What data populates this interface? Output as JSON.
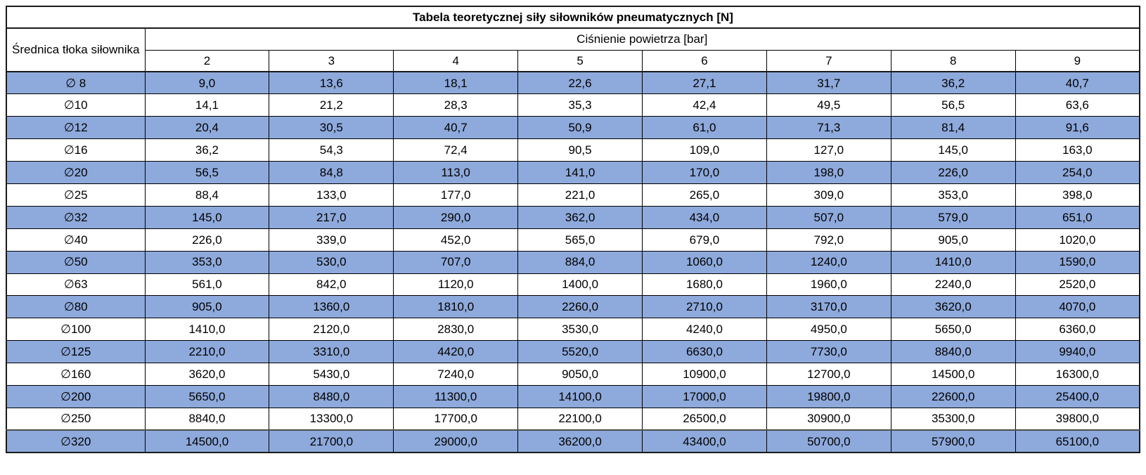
{
  "title": "Tabela teoretycznej siły siłowników pneumatycznych [N]",
  "headers": {
    "row_label": "Średnica tłoka siłownika",
    "column_group_label": "Ciśnienie powietrza [bar]"
  },
  "colors": {
    "row_highlight": "#8EA9DB",
    "border": "#000000",
    "background": "#FFFFFF",
    "text": "#000000"
  },
  "table": {
    "pressures": [
      "2",
      "3",
      "4",
      "5",
      "6",
      "7",
      "8",
      "9"
    ],
    "rows": [
      {
        "diameter": "∅ 8",
        "highlight": true,
        "values": [
          "9,0",
          "13,6",
          "18,1",
          "22,6",
          "27,1",
          "31,7",
          "36,2",
          "40,7"
        ]
      },
      {
        "diameter": "∅10",
        "highlight": false,
        "values": [
          "14,1",
          "21,2",
          "28,3",
          "35,3",
          "42,4",
          "49,5",
          "56,5",
          "63,6"
        ]
      },
      {
        "diameter": "∅12",
        "highlight": true,
        "values": [
          "20,4",
          "30,5",
          "40,7",
          "50,9",
          "61,0",
          "71,3",
          "81,4",
          "91,6"
        ]
      },
      {
        "diameter": "∅16",
        "highlight": false,
        "values": [
          "36,2",
          "54,3",
          "72,4",
          "90,5",
          "109,0",
          "127,0",
          "145,0",
          "163,0"
        ]
      },
      {
        "diameter": "∅20",
        "highlight": true,
        "values": [
          "56,5",
          "84,8",
          "113,0",
          "141,0",
          "170,0",
          "198,0",
          "226,0",
          "254,0"
        ]
      },
      {
        "diameter": "∅25",
        "highlight": false,
        "values": [
          "88,4",
          "133,0",
          "177,0",
          "221,0",
          "265,0",
          "309,0",
          "353,0",
          "398,0"
        ]
      },
      {
        "diameter": "∅32",
        "highlight": true,
        "values": [
          "145,0",
          "217,0",
          "290,0",
          "362,0",
          "434,0",
          "507,0",
          "579,0",
          "651,0"
        ]
      },
      {
        "diameter": "∅40",
        "highlight": false,
        "values": [
          "226,0",
          "339,0",
          "452,0",
          "565,0",
          "679,0",
          "792,0",
          "905,0",
          "1020,0"
        ]
      },
      {
        "diameter": "∅50",
        "highlight": true,
        "values": [
          "353,0",
          "530,0",
          "707,0",
          "884,0",
          "1060,0",
          "1240,0",
          "1410,0",
          "1590,0"
        ]
      },
      {
        "diameter": "∅63",
        "highlight": false,
        "values": [
          "561,0",
          "842,0",
          "1120,0",
          "1400,0",
          "1680,0",
          "1960,0",
          "2240,0",
          "2520,0"
        ]
      },
      {
        "diameter": "∅80",
        "highlight": true,
        "values": [
          "905,0",
          "1360,0",
          "1810,0",
          "2260,0",
          "2710,0",
          "3170,0",
          "3620,0",
          "4070,0"
        ]
      },
      {
        "diameter": "∅100",
        "highlight": false,
        "values": [
          "1410,0",
          "2120,0",
          "2830,0",
          "3530,0",
          "4240,0",
          "4950,0",
          "5650,0",
          "6360,0"
        ]
      },
      {
        "diameter": "∅125",
        "highlight": true,
        "values": [
          "2210,0",
          "3310,0",
          "4420,0",
          "5520,0",
          "6630,0",
          "7730,0",
          "8840,0",
          "9940,0"
        ]
      },
      {
        "diameter": "∅160",
        "highlight": false,
        "values": [
          "3620,0",
          "5430,0",
          "7240,0",
          "9050,0",
          "10900,0",
          "12700,0",
          "14500,0",
          "16300,0"
        ]
      },
      {
        "diameter": "∅200",
        "highlight": true,
        "values": [
          "5650,0",
          "8480,0",
          "11300,0",
          "14100,0",
          "17000,0",
          "19800,0",
          "22600,0",
          "25400,0"
        ]
      },
      {
        "diameter": "∅250",
        "highlight": false,
        "values": [
          "8840,0",
          "13300,0",
          "17700,0",
          "22100,0",
          "26500,0",
          "30900,0",
          "35300,0",
          "39800,0"
        ]
      },
      {
        "diameter": "∅320",
        "highlight": true,
        "values": [
          "14500,0",
          "21700,0",
          "29000,0",
          "36200,0",
          "43400,0",
          "50700,0",
          "57900,0",
          "65100,0"
        ]
      }
    ]
  },
  "chart_data": {
    "type": "table",
    "title": "Tabela teoretycznej siły siłowników pneumatycznych [N]",
    "row_label": "Średnica tłoka siłownika",
    "column_group_label": "Ciśnienie powietrza [bar]",
    "columns_bar": [
      2,
      3,
      4,
      5,
      6,
      7,
      8,
      9
    ],
    "rows": [
      {
        "diameter_mm": 8,
        "forces_N": [
          9.0,
          13.6,
          18.1,
          22.6,
          27.1,
          31.7,
          36.2,
          40.7
        ]
      },
      {
        "diameter_mm": 10,
        "forces_N": [
          14.1,
          21.2,
          28.3,
          35.3,
          42.4,
          49.5,
          56.5,
          63.6
        ]
      },
      {
        "diameter_mm": 12,
        "forces_N": [
          20.4,
          30.5,
          40.7,
          50.9,
          61.0,
          71.3,
          81.4,
          91.6
        ]
      },
      {
        "diameter_mm": 16,
        "forces_N": [
          36.2,
          54.3,
          72.4,
          90.5,
          109.0,
          127.0,
          145.0,
          163.0
        ]
      },
      {
        "diameter_mm": 20,
        "forces_N": [
          56.5,
          84.8,
          113.0,
          141.0,
          170.0,
          198.0,
          226.0,
          254.0
        ]
      },
      {
        "diameter_mm": 25,
        "forces_N": [
          88.4,
          133.0,
          177.0,
          221.0,
          265.0,
          309.0,
          353.0,
          398.0
        ]
      },
      {
        "diameter_mm": 32,
        "forces_N": [
          145.0,
          217.0,
          290.0,
          362.0,
          434.0,
          507.0,
          579.0,
          651.0
        ]
      },
      {
        "diameter_mm": 40,
        "forces_N": [
          226.0,
          339.0,
          452.0,
          565.0,
          679.0,
          792.0,
          905.0,
          1020.0
        ]
      },
      {
        "diameter_mm": 50,
        "forces_N": [
          353.0,
          530.0,
          707.0,
          884.0,
          1060.0,
          1240.0,
          1410.0,
          1590.0
        ]
      },
      {
        "diameter_mm": 63,
        "forces_N": [
          561.0,
          842.0,
          1120.0,
          1400.0,
          1680.0,
          1960.0,
          2240.0,
          2520.0
        ]
      },
      {
        "diameter_mm": 80,
        "forces_N": [
          905.0,
          1360.0,
          1810.0,
          2260.0,
          2710.0,
          3170.0,
          3620.0,
          4070.0
        ]
      },
      {
        "diameter_mm": 100,
        "forces_N": [
          1410.0,
          2120.0,
          2830.0,
          3530.0,
          4240.0,
          4950.0,
          5650.0,
          6360.0
        ]
      },
      {
        "diameter_mm": 125,
        "forces_N": [
          2210.0,
          3310.0,
          4420.0,
          5520.0,
          6630.0,
          7730.0,
          8840.0,
          9940.0
        ]
      },
      {
        "diameter_mm": 160,
        "forces_N": [
          3620.0,
          5430.0,
          7240.0,
          9050.0,
          10900.0,
          12700.0,
          14500.0,
          16300.0
        ]
      },
      {
        "diameter_mm": 200,
        "forces_N": [
          5650.0,
          8480.0,
          11300.0,
          14100.0,
          17000.0,
          19800.0,
          22600.0,
          25400.0
        ]
      },
      {
        "diameter_mm": 250,
        "forces_N": [
          8840.0,
          13300.0,
          17700.0,
          22100.0,
          26500.0,
          30900.0,
          35300.0,
          39800.0
        ]
      },
      {
        "diameter_mm": 320,
        "forces_N": [
          14500.0,
          21700.0,
          29000.0,
          36200.0,
          43400.0,
          50700.0,
          57900.0,
          65100.0
        ]
      }
    ]
  }
}
